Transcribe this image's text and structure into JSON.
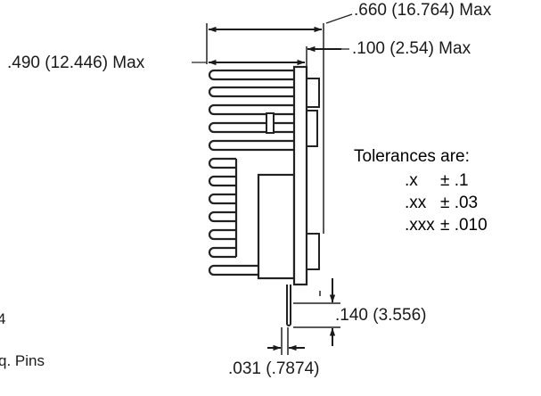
{
  "dimensions": {
    "overall_width_max": ".660 (16.764) Max",
    "heatsink_width_max": ".490 (12.446) Max",
    "component_height_max": ".100 (2.54) Max",
    "pin_length": ".140 (3.556)",
    "pin_thickness": ".031 (.7874)"
  },
  "tolerances": {
    "heading": "Tolerances are:",
    "rows": [
      {
        "code": ".x",
        "value": "± .1"
      },
      {
        "code": ".xx",
        "value": "± .03"
      },
      {
        "code": ".xxx",
        "value": "± .010"
      }
    ]
  },
  "cropped_text": {
    "fragment_digit": "4",
    "fragment_pins": "q. Pins"
  }
}
